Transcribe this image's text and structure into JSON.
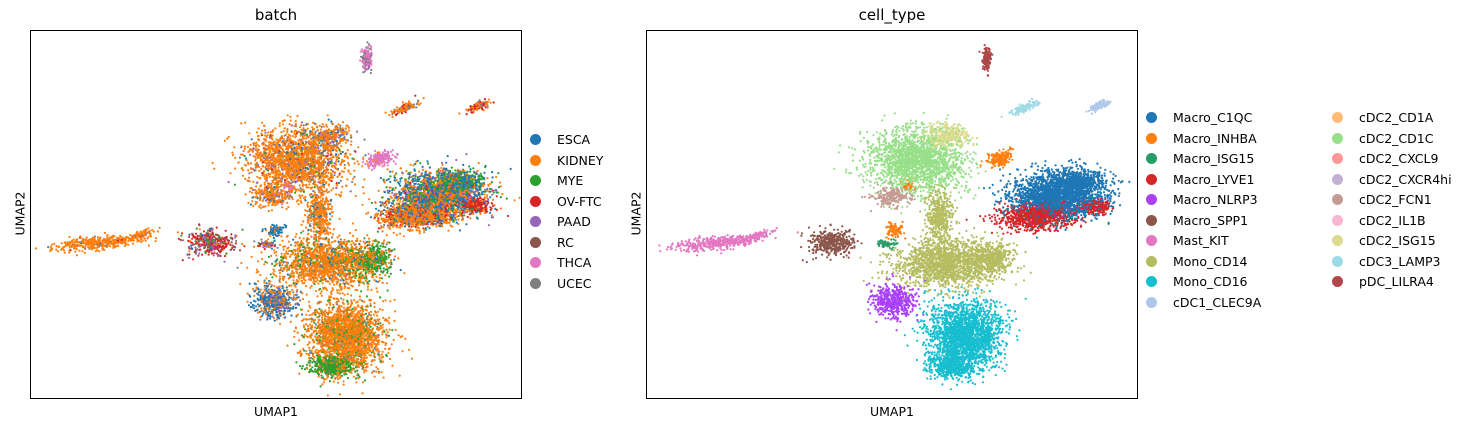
{
  "chart_data": [
    {
      "type": "scatter",
      "title": "batch",
      "xlabel": "UMAP1",
      "ylabel": "UMAP2",
      "grid": false,
      "legend_placement": "right",
      "series": [
        {
          "name": "ESCA",
          "color": "#1f77b4"
        },
        {
          "name": "KIDNEY",
          "color": "#ff7f0e"
        },
        {
          "name": "MYE",
          "color": "#2ca02c"
        },
        {
          "name": "OV-FTC",
          "color": "#d62728"
        },
        {
          "name": "PAAD",
          "color": "#9467bd"
        },
        {
          "name": "RC",
          "color": "#8c564b"
        },
        {
          "name": "THCA",
          "color": "#e377c2"
        },
        {
          "name": "UCEC",
          "color": "#7f7f7f"
        }
      ],
      "clusters": [
        {
          "label": "ESCA",
          "x": 0.78,
          "y": 0.62,
          "weights": [
            0.55,
            0.2,
            0.15,
            0.05,
            0.05,
            0,
            0,
            0
          ]
        },
        {
          "label": "KIDNEY",
          "x": 0.55,
          "y": 0.18,
          "weights": [
            0.05,
            0.85,
            0.05,
            0,
            0,
            0,
            0,
            0.05
          ]
        },
        {
          "label": "MYE",
          "x": 0.68,
          "y": 0.42,
          "weights": [
            0.1,
            0.1,
            0.7,
            0,
            0,
            0,
            0,
            0.1
          ]
        }
      ]
    },
    {
      "type": "scatter",
      "title": "cell_type",
      "xlabel": "UMAP1",
      "ylabel": "UMAP2",
      "grid": false,
      "legend_placement": "right",
      "series": [
        {
          "name": "Macro_C1QC",
          "color": "#1f77b4"
        },
        {
          "name": "Macro_INHBA",
          "color": "#ff7f0e"
        },
        {
          "name": "Macro_ISG15",
          "color": "#279e68"
        },
        {
          "name": "Macro_LYVE1",
          "color": "#d62728"
        },
        {
          "name": "Macro_NLRP3",
          "color": "#aa40fc"
        },
        {
          "name": "Macro_SPP1",
          "color": "#8c564b"
        },
        {
          "name": "Mast_KIT",
          "color": "#e377c2"
        },
        {
          "name": "Mono_CD14",
          "color": "#b5bd61"
        },
        {
          "name": "Mono_CD16",
          "color": "#17becf"
        },
        {
          "name": "cDC1_CLEC9A",
          "color": "#aec7e8"
        },
        {
          "name": "cDC2_CD1A",
          "color": "#ffbb78"
        },
        {
          "name": "cDC2_CD1C",
          "color": "#98df8a"
        },
        {
          "name": "cDC2_CXCL9",
          "color": "#ff9896"
        },
        {
          "name": "cDC2_CXCR4hi",
          "color": "#c5b0d5"
        },
        {
          "name": "cDC2_FCN1",
          "color": "#c49c94"
        },
        {
          "name": "cDC2_IL1B",
          "color": "#f7b6d2"
        },
        {
          "name": "cDC2_ISG15",
          "color": "#dbdb8d"
        },
        {
          "name": "cDC3_LAMP3",
          "color": "#9edae5"
        },
        {
          "name": "pDC_LILRA4",
          "color": "#ad494a"
        }
      ]
    }
  ]
}
